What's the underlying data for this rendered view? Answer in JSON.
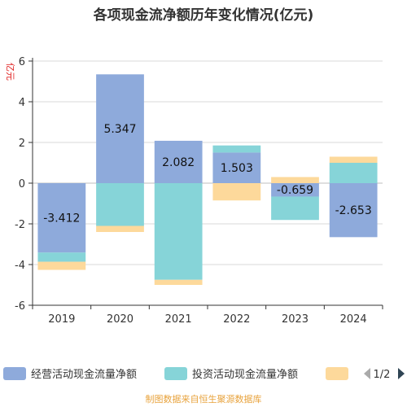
{
  "chart_data": {
    "type": "bar",
    "title": "各项现金流净额历年变化情况(亿元)",
    "ylabel": "亿元",
    "categories": [
      "2019",
      "2020",
      "2021",
      "2022",
      "2023",
      "2024"
    ],
    "ylim": [
      -6,
      6
    ],
    "yticks": [
      -6,
      -4,
      -2,
      0,
      2,
      4,
      6
    ],
    "stacked": true,
    "grid": true,
    "legend_position": "bottom",
    "series": [
      {
        "name": "经营活动现金流量净额",
        "color": "#8eaadb",
        "values": [
          -3.412,
          5.347,
          2.082,
          1.503,
          -0.659,
          -2.653
        ],
        "data_labels": [
          "-3.412",
          "5.347",
          "2.082",
          "1.503",
          "-0.659",
          "-2.653"
        ]
      },
      {
        "name": "投资活动现金流量净额",
        "color": "#86d4d8",
        "values": [
          -0.45,
          -2.1,
          -4.75,
          0.35,
          -1.15,
          1.0
        ]
      },
      {
        "color": "#fdd99b",
        "values": [
          -0.4,
          -0.3,
          -0.25,
          -0.85,
          0.3,
          0.3
        ]
      }
    ]
  },
  "legend": {
    "page": "1/2",
    "prev_icon": "triangle-left",
    "next_icon": "triangle-right"
  },
  "footer": {
    "source": "制图数据来自恒生聚源数据库"
  }
}
